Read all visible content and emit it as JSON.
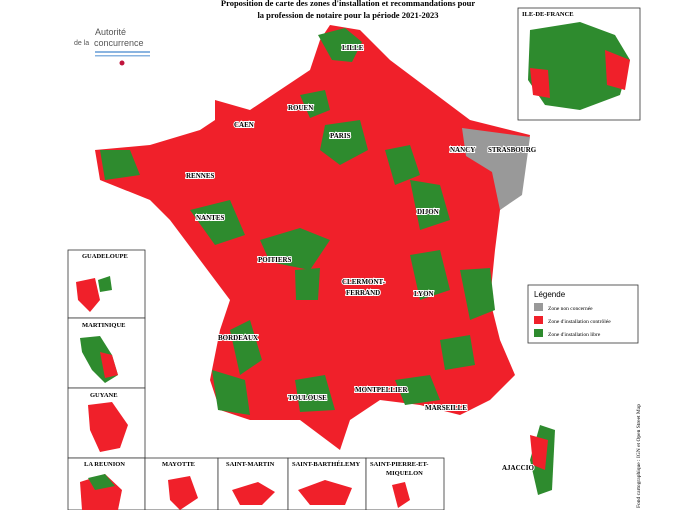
{
  "header": {
    "title_lines": [
      "Proposition de carte des zones d'installation et recommandations pour",
      "la profession de notaire pour la période 2021-2023"
    ],
    "logo": [
      "Autorité",
      "de la",
      "concurrence"
    ]
  },
  "cities": [
    "LILLE",
    "ROUEN",
    "CAEN",
    "PARIS",
    "NANCY",
    "STRASBOURG",
    "RENNES",
    "NANTES",
    "DIJON",
    "POITIERS",
    "CLERMONT-",
    "FERRAND",
    "LYON",
    "BORDEAUX",
    "MONTPELLIER",
    "TOULOUSE",
    "MARSEILLE",
    "AJACCIO"
  ],
  "insets": [
    "ILE-DE-FRANCE",
    "GUADELOUPE",
    "MARTINIQUE",
    "GUYANE",
    "LA REUNION",
    "MAYOTTE",
    "SAINT-MARTIN",
    "SAINT-BARTHÉLEMY",
    "SAINT-PIERRE-ET-",
    "MIQUELON"
  ],
  "legend": {
    "title": "Légende",
    "items": [
      {
        "label": "Zone non concernée",
        "color": "#999999"
      },
      {
        "label": "Zone d'installation contrôlée",
        "color": "#f0202a"
      },
      {
        "label": "Zone d'installation libre",
        "color": "#2e8b2e"
      }
    ]
  },
  "credit": "Fond cartographique : IGN et Open Street Map"
}
